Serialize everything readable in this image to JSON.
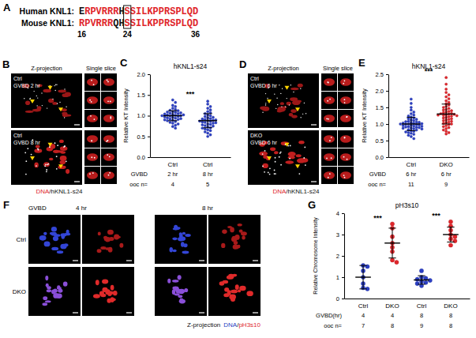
{
  "panel_a": {
    "panel": "A",
    "rows": [
      {
        "name": "Human KNL1:",
        "segments": [
          {
            "text": "E",
            "color": "black"
          },
          {
            "text": "RPVRRR",
            "color": "red"
          },
          {
            "text": "H",
            "color": "black"
          },
          {
            "text": "S",
            "color": "red",
            "boxed": true
          },
          {
            "text": "SILKPPRSPLQD",
            "color": "red"
          }
        ]
      },
      {
        "name": "Mouse KNL1:",
        "segments": [
          {
            "text": "RPVRRR",
            "color": "red"
          },
          {
            "text": "QH",
            "color": "black"
          },
          {
            "text": "S",
            "color": "red",
            "boxed": true
          },
          {
            "text": "SILKPPRSPLQD",
            "color": "red"
          }
        ]
      }
    ],
    "positions": [
      16,
      24,
      36
    ]
  },
  "image_panels": [
    {
      "panel": "B",
      "headers": [
        "Z-projection",
        "Single slice"
      ],
      "images": [
        {
          "lines": [
            "Ctrl",
            "GVBD 2 hr"
          ]
        },
        {
          "lines": [
            "Ctrl",
            "GVBD 8 hr"
          ]
        }
      ],
      "stain": [
        {
          "text": "DNA",
          "color": "red"
        },
        {
          "text": "/hKNL1-s24",
          "color": "black"
        }
      ]
    },
    {
      "panel": "D",
      "headers": [
        "Z-projection",
        "Single slice"
      ],
      "images": [
        {
          "lines": [
            "Ctrl",
            "GVBD 6 hr"
          ]
        },
        {
          "lines": [
            "DKO",
            "GVBD 6 hr"
          ]
        }
      ],
      "stain": [
        {
          "text": "DNA",
          "color": "red"
        },
        {
          "text": "/hKNL1-s24",
          "color": "black"
        }
      ]
    }
  ],
  "panel_f": {
    "panel": "F",
    "time_label": "GVBD",
    "timepoints": [
      "4 hr",
      "8 hr"
    ],
    "rows": [
      "Ctrl",
      "DKO"
    ],
    "caption": "Z-projection",
    "stain": [
      {
        "text": "DNA",
        "color": "blue"
      },
      {
        "text": "/",
        "color": "black"
      },
      {
        "text": "pH3s10",
        "color": "red"
      }
    ]
  },
  "chart_data": [
    {
      "panel": "C",
      "type": "strip",
      "title": "hKNL1-s24",
      "ylabel": "Relative KT Intensity",
      "categories": [
        "Ctrl",
        "Ctrl"
      ],
      "values": [
        [
          1.38,
          1.32,
          1.25,
          1.22,
          1.18,
          1.15,
          1.13,
          1.12,
          1.1,
          1.09,
          1.08,
          1.07,
          1.06,
          1.05,
          1.04,
          1.03,
          1.02,
          1.02,
          1.01,
          1.0,
          1.0,
          0.99,
          0.98,
          0.97,
          0.96,
          0.95,
          0.94,
          0.93,
          0.92,
          0.91,
          0.9,
          0.89,
          0.88,
          0.86,
          0.84,
          0.82,
          0.8,
          0.77,
          0.74,
          0.7
        ],
        [
          1.35,
          1.28,
          1.22,
          1.18,
          1.14,
          1.1,
          1.07,
          1.05,
          1.02,
          1.0,
          0.98,
          0.96,
          0.95,
          0.93,
          0.92,
          0.91,
          0.9,
          0.89,
          0.88,
          0.87,
          0.86,
          0.85,
          0.84,
          0.83,
          0.82,
          0.8,
          0.79,
          0.78,
          0.76,
          0.75,
          0.73,
          0.71,
          0.7,
          0.68,
          0.66,
          0.64,
          0.61,
          0.58,
          0.54,
          0.5
        ]
      ],
      "means": [
        1.0,
        0.88
      ],
      "errors": [
        0.12,
        0.17
      ],
      "colors": [
        "#2b3fc4",
        "#2b3fc4"
      ],
      "ylim": [
        0,
        2
      ],
      "yticks": [
        {
          "value": 0,
          "label": "0.0"
        },
        {
          "value": 0.5,
          "label": "0.5"
        },
        {
          "value": 1,
          "label": "1.0"
        },
        {
          "value": 1.5,
          "label": "1.5"
        },
        {
          "value": 2,
          "label": "2.0"
        }
      ],
      "rows": [
        {
          "label": "GVBD",
          "values": [
            "2 hr",
            "8 hr"
          ]
        },
        {
          "label": "ooc n=",
          "values": [
            4,
            5
          ]
        }
      ],
      "significance": [
        {
          "label": "***",
          "groups": [
            0,
            1
          ]
        }
      ]
    },
    {
      "panel": "E",
      "type": "strip",
      "title": "hKNL1-s24",
      "ylabel": "Relative KT Intensity",
      "categories": [
        "Ctrl",
        "DKO"
      ],
      "values": [
        [
          1.75,
          1.62,
          1.5,
          1.42,
          1.36,
          1.31,
          1.27,
          1.24,
          1.21,
          1.18,
          1.16,
          1.14,
          1.12,
          1.1,
          1.08,
          1.07,
          1.06,
          1.05,
          1.04,
          1.03,
          1.02,
          1.01,
          1.0,
          1.0,
          0.99,
          0.98,
          0.97,
          0.96,
          0.95,
          0.94,
          0.93,
          0.92,
          0.91,
          0.9,
          0.89,
          0.88,
          0.87,
          0.86,
          0.85,
          0.83,
          0.82,
          0.8,
          0.78,
          0.76,
          0.74,
          0.72,
          0.69,
          0.66,
          0.62,
          0.56
        ],
        [
          2.4,
          2.2,
          2.05,
          1.95,
          1.88,
          1.82,
          1.76,
          1.7,
          1.65,
          1.61,
          1.57,
          1.53,
          1.5,
          1.47,
          1.44,
          1.42,
          1.4,
          1.38,
          1.36,
          1.34,
          1.32,
          1.31,
          1.3,
          1.29,
          1.28,
          1.27,
          1.26,
          1.25,
          1.24,
          1.22,
          1.2,
          1.18,
          1.16,
          1.14,
          1.12,
          1.1,
          1.08,
          1.06,
          1.04,
          1.02,
          1.0,
          0.98,
          0.95,
          0.92,
          0.89,
          0.86,
          0.82,
          0.78,
          0.74,
          0.7
        ]
      ],
      "means": [
        1.0,
        1.3
      ],
      "errors": [
        0.2,
        0.3
      ],
      "colors": [
        "#2b3fc4",
        "#e0262b"
      ],
      "ylim": [
        0,
        2.5
      ],
      "yticks": [
        {
          "value": 0,
          "label": "0.0"
        },
        {
          "value": 0.5,
          "label": "0.5"
        },
        {
          "value": 1,
          "label": "1.0"
        },
        {
          "value": 1.5,
          "label": "1.5"
        },
        {
          "value": 2,
          "label": "2.0"
        },
        {
          "value": 2.5,
          "label": "2.5"
        }
      ],
      "rows": [
        {
          "label": "GVBD",
          "values": [
            "6 hr",
            "6 hr"
          ]
        },
        {
          "label": "ooc n=",
          "values": [
            11,
            9
          ]
        }
      ],
      "significance": [
        {
          "label": "***",
          "groups": [
            0,
            1
          ]
        }
      ]
    },
    {
      "panel": "G",
      "type": "strip",
      "title": "pH3s10",
      "ylabel": "Relative Chromosome Intensity",
      "categories": [
        "Ctrl",
        "DKO",
        "Ctrl",
        "DKO"
      ],
      "values": [
        [
          1.55,
          1.5,
          1.3,
          1.0,
          0.7,
          0.5,
          0.45
        ],
        [
          3.5,
          3.3,
          2.9,
          2.6,
          2.4,
          2.2,
          1.8,
          1.7
        ],
        [
          1.3,
          1.0,
          0.95,
          0.9,
          0.85,
          0.8,
          0.75,
          0.7,
          0.6
        ],
        [
          3.6,
          3.4,
          3.2,
          3.0,
          2.9,
          2.8,
          2.7,
          2.5
        ]
      ],
      "means": [
        1.0,
        2.6,
        0.87,
        3.0
      ],
      "errors": [
        0.55,
        0.7,
        0.2,
        0.35
      ],
      "colors": [
        "#2b3fc4",
        "#e0262b",
        "#2b3fc4",
        "#e0262b"
      ],
      "ylim": [
        0,
        4
      ],
      "yticks": [
        0,
        1,
        2,
        3,
        4
      ],
      "rows": [
        {
          "label": "GVBD(hr)",
          "values": [
            4,
            4,
            8,
            8
          ]
        },
        {
          "label": "ooc n=",
          "values": [
            7,
            8,
            9,
            8
          ]
        }
      ],
      "significance": [
        {
          "label": "***",
          "groups": [
            0,
            1
          ]
        },
        {
          "label": "***",
          "groups": [
            2,
            3
          ]
        }
      ]
    }
  ]
}
